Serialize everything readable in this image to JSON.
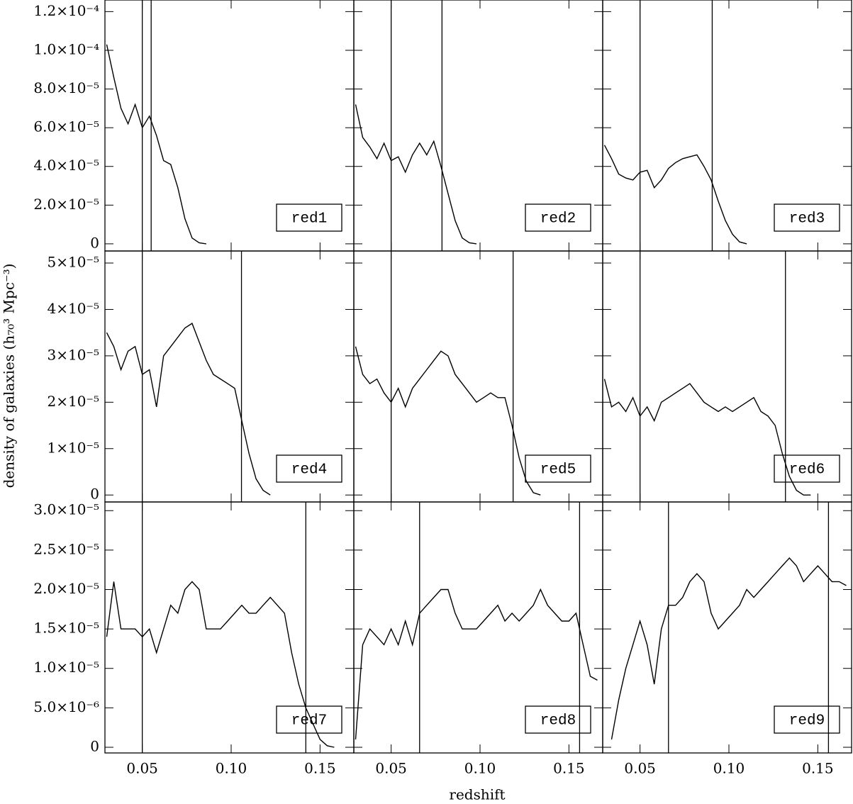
{
  "x_label": "redshift",
  "y_label": "density of galaxies (h₇₀³ Mpc⁻³)",
  "chart_data": [
    {
      "type": "line",
      "label": "red1",
      "color": "#000000",
      "ylim": [
        -3.7e-06,
        0.000126
      ],
      "yticks": [
        0,
        {
          "value": 2e-05,
          "label": "2.0×10⁻⁵"
        },
        {
          "value": 4e-05,
          "label": "4.0×10⁻⁵"
        },
        {
          "value": 6e-05,
          "label": "6.0×10⁻⁵"
        },
        {
          "value": 8e-05,
          "label": "8.0×10⁻⁵"
        },
        {
          "value": 0.0001,
          "label": "1.0×10⁻⁴"
        },
        {
          "value": 0.00012,
          "label": "1.2×10⁻⁴"
        }
      ],
      "vlines": [
        0.05,
        0.055
      ],
      "x": [
        0.03,
        0.034,
        0.038,
        0.042,
        0.046,
        0.05,
        0.054,
        0.058,
        0.062,
        0.066,
        0.07,
        0.074,
        0.078,
        0.082,
        0.086,
        0.09,
        0.094,
        0.098,
        0.102,
        0.106,
        0.11,
        0.114,
        0.118,
        0.122,
        0.126,
        0.13,
        0.134,
        0.138,
        0.142,
        0.146,
        0.15,
        0.154,
        0.158,
        0.162,
        0.166
      ],
      "values": [
        0.000103,
        8.6e-05,
        7e-05,
        6.2e-05,
        7.2e-05,
        6e-05,
        6.6e-05,
        5.6e-05,
        4.3e-05,
        4.1e-05,
        2.9e-05,
        1.3e-05,
        3e-06,
        5e-07,
        0,
        null,
        null,
        null,
        null,
        null,
        null,
        null,
        null,
        null,
        null,
        null,
        null,
        null,
        null,
        null,
        null,
        null,
        null,
        null,
        null
      ]
    },
    {
      "type": "line",
      "label": "red2",
      "color": "#000000",
      "vlines": [
        0.05,
        0.0786
      ],
      "x": [
        0.03,
        0.034,
        0.038,
        0.042,
        0.046,
        0.05,
        0.054,
        0.058,
        0.062,
        0.066,
        0.07,
        0.074,
        0.078,
        0.082,
        0.086,
        0.09,
        0.094,
        0.098,
        0.102,
        0.106,
        0.11,
        0.114,
        0.118,
        0.122,
        0.126,
        0.13,
        0.134,
        0.138,
        0.142,
        0.146,
        0.15,
        0.154,
        0.158,
        0.162,
        0.166
      ],
      "values": [
        7.2e-05,
        5.5e-05,
        5e-05,
        4.4e-05,
        5.2e-05,
        4.3e-05,
        4.5e-05,
        3.7e-05,
        4.6e-05,
        5.2e-05,
        4.6e-05,
        5.3e-05,
        4e-05,
        2.6e-05,
        1.2e-05,
        3e-06,
        5e-07,
        0,
        null,
        null,
        null,
        null,
        null,
        null,
        null,
        null,
        null,
        null,
        null,
        null,
        null,
        null,
        null,
        null,
        null
      ]
    },
    {
      "type": "line",
      "label": "red3",
      "color": "#000000",
      "vlines": [
        0.05,
        0.0906
      ],
      "x": [
        0.03,
        0.034,
        0.038,
        0.042,
        0.046,
        0.05,
        0.054,
        0.058,
        0.062,
        0.066,
        0.07,
        0.074,
        0.078,
        0.082,
        0.086,
        0.09,
        0.094,
        0.098,
        0.102,
        0.106,
        0.11,
        0.114,
        0.118,
        0.122,
        0.126,
        0.13,
        0.134,
        0.138,
        0.142,
        0.146,
        0.15,
        0.154,
        0.158,
        0.162,
        0.166
      ],
      "values": [
        5.1e-05,
        4.4e-05,
        3.6e-05,
        3.4e-05,
        3.3e-05,
        3.7e-05,
        3.8e-05,
        2.9e-05,
        3.3e-05,
        3.9e-05,
        4.2e-05,
        4.4e-05,
        4.5e-05,
        4.6e-05,
        4e-05,
        3.3e-05,
        2.2e-05,
        1.2e-05,
        5e-06,
        1e-06,
        0,
        null,
        null,
        null,
        null,
        null,
        null,
        null,
        null,
        null,
        null,
        null,
        null,
        null,
        null
      ]
    },
    {
      "type": "line",
      "label": "red4",
      "color": "#000000",
      "ylim": [
        -1.5e-06,
        5.26e-05
      ],
      "yticks": [
        0,
        {
          "value": 1e-05,
          "label": "1×10⁻⁵"
        },
        {
          "value": 2e-05,
          "label": "2×10⁻⁵"
        },
        {
          "value": 3e-05,
          "label": "3×10⁻⁵"
        },
        {
          "value": 4e-05,
          "label": "4×10⁻⁵"
        },
        {
          "value": 5e-05,
          "label": "5×10⁻⁵"
        }
      ],
      "vlines": [
        0.05,
        0.1058
      ],
      "x": [
        0.03,
        0.034,
        0.038,
        0.042,
        0.046,
        0.05,
        0.054,
        0.058,
        0.062,
        0.066,
        0.07,
        0.074,
        0.078,
        0.082,
        0.086,
        0.09,
        0.094,
        0.098,
        0.102,
        0.106,
        0.11,
        0.114,
        0.118,
        0.122,
        0.126,
        0.13,
        0.134,
        0.138,
        0.142,
        0.146,
        0.15,
        0.154,
        0.158,
        0.162,
        0.166
      ],
      "values": [
        3.5e-05,
        3.2e-05,
        2.7e-05,
        3.1e-05,
        3.2e-05,
        2.6e-05,
        2.7e-05,
        1.9e-05,
        3e-05,
        3.2e-05,
        3.4e-05,
        3.6e-05,
        3.7e-05,
        3.3e-05,
        2.9e-05,
        2.6e-05,
        2.5e-05,
        2.4e-05,
        2.3e-05,
        1.6e-05,
        9e-06,
        3.5e-06,
        1e-06,
        0,
        null,
        null,
        null,
        null,
        null,
        null,
        null,
        null,
        null,
        null,
        null
      ]
    },
    {
      "type": "line",
      "label": "red5",
      "color": "#000000",
      "vlines": [
        0.05,
        0.1186
      ],
      "x": [
        0.03,
        0.034,
        0.038,
        0.042,
        0.046,
        0.05,
        0.054,
        0.058,
        0.062,
        0.066,
        0.07,
        0.074,
        0.078,
        0.082,
        0.086,
        0.09,
        0.094,
        0.098,
        0.102,
        0.106,
        0.11,
        0.114,
        0.118,
        0.122,
        0.126,
        0.13,
        0.134,
        0.138,
        0.142,
        0.146,
        0.15,
        0.154,
        0.158,
        0.162,
        0.166
      ],
      "values": [
        3.2e-05,
        2.6e-05,
        2.4e-05,
        2.5e-05,
        2.2e-05,
        2e-05,
        2.3e-05,
        1.9e-05,
        2.3e-05,
        2.5e-05,
        2.7e-05,
        2.9e-05,
        3.1e-05,
        3e-05,
        2.6e-05,
        2.4e-05,
        2.2e-05,
        2e-05,
        2.1e-05,
        2.2e-05,
        2.1e-05,
        2.1e-05,
        1.5e-05,
        8e-06,
        3e-06,
        5e-07,
        0,
        null,
        null,
        null,
        null,
        null,
        null,
        null,
        null
      ]
    },
    {
      "type": "line",
      "label": "red6",
      "color": "#000000",
      "vlines": [
        0.05,
        0.1318
      ],
      "x": [
        0.03,
        0.034,
        0.038,
        0.042,
        0.046,
        0.05,
        0.054,
        0.058,
        0.062,
        0.066,
        0.07,
        0.074,
        0.078,
        0.082,
        0.086,
        0.09,
        0.094,
        0.098,
        0.102,
        0.106,
        0.11,
        0.114,
        0.118,
        0.122,
        0.126,
        0.13,
        0.134,
        0.138,
        0.142,
        0.146,
        0.15,
        0.154,
        0.158,
        0.162,
        0.166
      ],
      "values": [
        2.5e-05,
        1.9e-05,
        2e-05,
        1.8e-05,
        2.1e-05,
        1.7e-05,
        1.9e-05,
        1.6e-05,
        2e-05,
        2.1e-05,
        2.2e-05,
        2.3e-05,
        2.4e-05,
        2.2e-05,
        2e-05,
        1.9e-05,
        1.8e-05,
        1.9e-05,
        1.8e-05,
        1.9e-05,
        2e-05,
        2.1e-05,
        1.8e-05,
        1.7e-05,
        1.5e-05,
        9e-06,
        4e-06,
        1e-06,
        0,
        0,
        null,
        null,
        null,
        null,
        null
      ]
    },
    {
      "type": "line",
      "label": "red7",
      "color": "#000000",
      "ylim": [
        -7.2e-07,
        3.11e-05
      ],
      "yticks": [
        0,
        {
          "value": 5e-06,
          "label": "5.0×10⁻⁶"
        },
        {
          "value": 1e-05,
          "label": "1.0×10⁻⁵"
        },
        {
          "value": 1.5e-05,
          "label": "1.5×10⁻⁵"
        },
        {
          "value": 2e-05,
          "label": "2.0×10⁻⁵"
        },
        {
          "value": 2.5e-05,
          "label": "2.5×10⁻⁵"
        },
        {
          "value": 3e-05,
          "label": "3.0×10⁻⁵"
        }
      ],
      "xlim": [
        0.029,
        0.169
      ],
      "xticks": [
        0.05,
        {
          "value": 0.1,
          "label": "0.10"
        },
        0.15
      ],
      "vlines": [
        0.05,
        0.142
      ],
      "x": [
        0.03,
        0.034,
        0.038,
        0.042,
        0.046,
        0.05,
        0.054,
        0.058,
        0.062,
        0.066,
        0.07,
        0.074,
        0.078,
        0.082,
        0.086,
        0.09,
        0.094,
        0.098,
        0.102,
        0.106,
        0.11,
        0.114,
        0.118,
        0.122,
        0.126,
        0.13,
        0.134,
        0.138,
        0.142,
        0.146,
        0.15,
        0.154,
        0.158,
        0.162,
        0.166
      ],
      "values": [
        1.4e-05,
        2.1e-05,
        1.5e-05,
        1.5e-05,
        1.5e-05,
        1.4e-05,
        1.5e-05,
        1.2e-05,
        1.5e-05,
        1.8e-05,
        1.7e-05,
        2e-05,
        2.1e-05,
        2e-05,
        1.5e-05,
        1.5e-05,
        1.5e-05,
        1.6e-05,
        1.7e-05,
        1.8e-05,
        1.7e-05,
        1.7e-05,
        1.8e-05,
        1.9e-05,
        1.8e-05,
        1.7e-05,
        1.2e-05,
        8e-06,
        5e-06,
        3e-06,
        1e-06,
        2e-07,
        0,
        null,
        null
      ]
    },
    {
      "type": "line",
      "label": "red8",
      "color": "#000000",
      "xlim": [
        0.029,
        0.169
      ],
      "xticks": [
        0.05,
        {
          "value": 0.1,
          "label": "0.10"
        },
        0.15
      ],
      "vlines": [
        0.066,
        0.156
      ],
      "x": [
        0.03,
        0.034,
        0.038,
        0.042,
        0.046,
        0.05,
        0.054,
        0.058,
        0.062,
        0.066,
        0.07,
        0.074,
        0.078,
        0.082,
        0.086,
        0.09,
        0.094,
        0.098,
        0.102,
        0.106,
        0.11,
        0.114,
        0.118,
        0.122,
        0.126,
        0.13,
        0.134,
        0.138,
        0.142,
        0.146,
        0.15,
        0.154,
        0.158,
        0.162,
        0.166
      ],
      "values": [
        1e-06,
        1.3e-05,
        1.5e-05,
        1.4e-05,
        1.3e-05,
        1.5e-05,
        1.3e-05,
        1.6e-05,
        1.3e-05,
        1.7e-05,
        1.8e-05,
        1.9e-05,
        2e-05,
        2e-05,
        1.7e-05,
        1.5e-05,
        1.5e-05,
        1.5e-05,
        1.6e-05,
        1.7e-05,
        1.8e-05,
        1.6e-05,
        1.7e-05,
        1.6e-05,
        1.7e-05,
        1.8e-05,
        2e-05,
        1.8e-05,
        1.7e-05,
        1.6e-05,
        1.6e-05,
        1.7e-05,
        1.3e-05,
        9e-06,
        8.5e-06
      ]
    },
    {
      "type": "line",
      "label": "red9",
      "color": "#000000",
      "xlim": [
        0.029,
        0.169
      ],
      "xticks": [
        0.05,
        {
          "value": 0.1,
          "label": "0.10"
        },
        0.15
      ],
      "vlines": [
        0.066,
        0.156
      ],
      "x": [
        0.03,
        0.034,
        0.038,
        0.042,
        0.046,
        0.05,
        0.054,
        0.058,
        0.062,
        0.066,
        0.07,
        0.074,
        0.078,
        0.082,
        0.086,
        0.09,
        0.094,
        0.098,
        0.102,
        0.106,
        0.11,
        0.114,
        0.118,
        0.122,
        0.126,
        0.13,
        0.134,
        0.138,
        0.142,
        0.146,
        0.15,
        0.154,
        0.158,
        0.162,
        0.166
      ],
      "values": [
        null,
        1e-06,
        6e-06,
        1e-05,
        1.3e-05,
        1.6e-05,
        1.3e-05,
        8e-06,
        1.5e-05,
        1.8e-05,
        1.8e-05,
        1.9e-05,
        2.1e-05,
        2.2e-05,
        2.1e-05,
        1.7e-05,
        1.5e-05,
        1.6e-05,
        1.7e-05,
        1.8e-05,
        2e-05,
        1.9e-05,
        2e-05,
        2.1e-05,
        2.2e-05,
        2.3e-05,
        2.4e-05,
        2.3e-05,
        2.1e-05,
        2.2e-05,
        2.3e-05,
        2.2e-05,
        2.1e-05,
        2.1e-05,
        2.05e-05
      ]
    }
  ]
}
